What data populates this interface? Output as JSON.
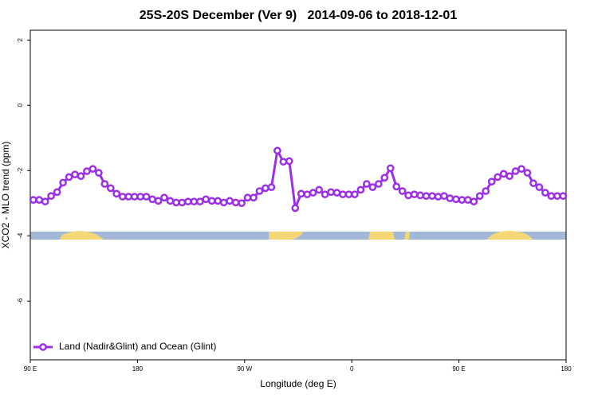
{
  "chart_data": {
    "type": "line",
    "title": "25S-20S December (Ver 9)   2014-09-06 to 2018-12-01",
    "xlabel": "Longitude (deg E)",
    "ylabel": "XCO2 - MLO trend (ppm)",
    "legend_position": "bottom-left",
    "xlim": [
      90,
      540
    ],
    "xticks": [
      {
        "value": 90,
        "label": "90 E"
      },
      {
        "value": 180,
        "label": "180"
      },
      {
        "value": 270,
        "label": "90 W"
      },
      {
        "value": 360,
        "label": "0"
      },
      {
        "value": 450,
        "label": "90 E"
      },
      {
        "value": 540,
        "label": "180"
      }
    ],
    "ylim": [
      -7.8,
      2.3
    ],
    "yticks": [
      -6,
      -4,
      -2,
      0,
      2
    ],
    "x": [
      92.5,
      97.5,
      102.5,
      107.5,
      112.5,
      117.5,
      122.5,
      127.5,
      132.5,
      137.5,
      142.5,
      147.5,
      152.5,
      157.5,
      162.5,
      167.5,
      172.5,
      177.5,
      182.5,
      187.5,
      192.5,
      197.5,
      202.5,
      207.5,
      212.5,
      217.5,
      222.5,
      227.5,
      232.5,
      237.5,
      242.5,
      247.5,
      252.5,
      257.5,
      262.5,
      267.5,
      272.5,
      277.5,
      282.5,
      287.5,
      292.5,
      297.5,
      302.5,
      307.5,
      312.5,
      317.5,
      322.5,
      327.5,
      332.5,
      337.5,
      342.5,
      347.5,
      352.5,
      357.5,
      362.5,
      367.5,
      372.5,
      377.5,
      382.5,
      387.5,
      392.5,
      397.5,
      402.5,
      407.5,
      412.5,
      417.5,
      422.5,
      427.5,
      432.5,
      437.5,
      442.5,
      447.5,
      452.5,
      457.5,
      462.5,
      467.5,
      472.5,
      477.5,
      482.5,
      487.5,
      492.5,
      497.5,
      502.5,
      507.5,
      512.5,
      517.5,
      522.5,
      527.5,
      532.5,
      537.5
    ],
    "series": [
      {
        "name": "Land (Nadir&Glint) and Ocean (Glint)",
        "color": "#9b30e6",
        "values": [
          -2.9,
          -2.9,
          -2.95,
          -2.78,
          -2.66,
          -2.37,
          -2.2,
          -2.12,
          -2.17,
          -2.02,
          -1.95,
          -2.07,
          -2.41,
          -2.54,
          -2.71,
          -2.8,
          -2.8,
          -2.8,
          -2.8,
          -2.8,
          -2.88,
          -2.93,
          -2.83,
          -2.93,
          -2.98,
          -2.98,
          -2.95,
          -2.95,
          -2.95,
          -2.88,
          -2.93,
          -2.93,
          -2.98,
          -2.93,
          -2.98,
          -3.0,
          -2.83,
          -2.83,
          -2.63,
          -2.54,
          -2.51,
          -1.39,
          -1.73,
          -1.71,
          -3.15,
          -2.71,
          -2.73,
          -2.68,
          -2.59,
          -2.73,
          -2.66,
          -2.68,
          -2.73,
          -2.73,
          -2.73,
          -2.59,
          -2.41,
          -2.51,
          -2.41,
          -2.22,
          -1.93,
          -2.49,
          -2.63,
          -2.76,
          -2.73,
          -2.76,
          -2.78,
          -2.78,
          -2.8,
          -2.78,
          -2.85,
          -2.88,
          -2.9,
          -2.9,
          -2.95,
          -2.78,
          -2.63,
          -2.34,
          -2.2,
          -2.1,
          -2.17,
          -2.02,
          -1.95,
          -2.07,
          -2.39,
          -2.51,
          -2.68,
          -2.78,
          -2.78,
          -2.78
        ]
      }
    ]
  }
}
